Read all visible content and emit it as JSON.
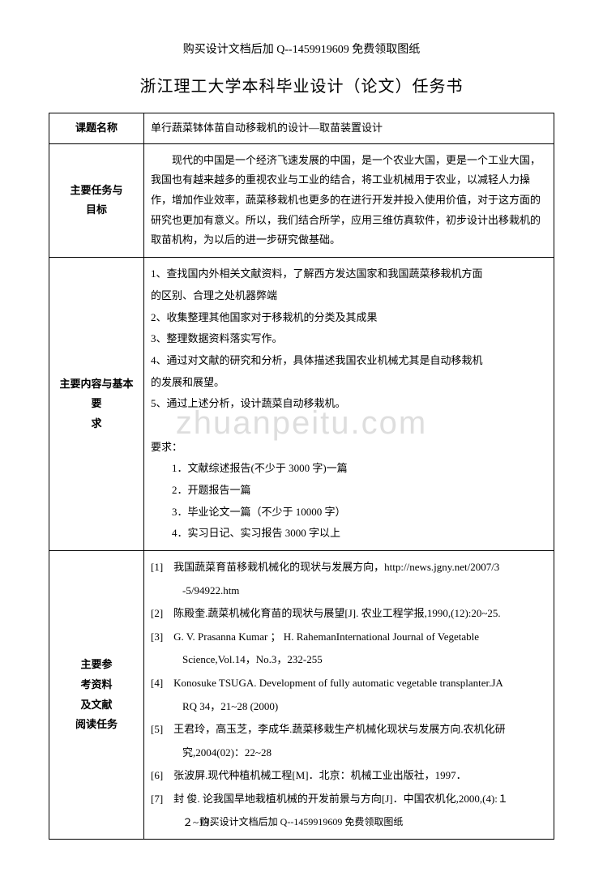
{
  "header": "购买设计文档后加 Q--1459919609 免费领取图纸",
  "title": "浙江理工大学本科毕业设计（论文）任务书",
  "watermark": "zhuanpeitu.com",
  "footer": "购买设计文档后加 Q--1459919609 免费领取图纸",
  "rows": {
    "topic_label": "课题名称",
    "topic_value": "单行蔬菜钵体苗自动移栽机的设计—取苗装置设计",
    "task_label_1": "主要任务与",
    "task_label_2": "目标",
    "task_content": "现代的中国是一个经济飞速发展的中国，是一个农业大国，更是一个工业大国，我国也有越来越多的重视农业与工业的结合，将工业机械用于农业，以减轻人力操作，增加作业效率，蔬菜移栽机也更多的在进行开发并投入使用价值，对于这方面的研究也更加有意义。所以，我们结合所学，应用三维仿真软件，初步设计出移栽机的取苗机构，为以后的进一步研究做基础。",
    "req_label_1": "主要内容与基本要",
    "req_label_2": "求",
    "req_1": "1、查找国内外相关文献资料，了解西方发达国家和我国蔬菜移栽机方面",
    "req_1b": "的区别、合理之处机器弊端",
    "req_2": "2、收集整理其他国家对于移栽机的分类及其成果",
    "req_3": "3、整理数据资料落实写作。",
    "req_4": "4、通过对文献的研究和分析，具体描述我国农业机械尤其是自动移栽机",
    "req_4b": "的发展和展望。",
    "req_5": "5、通过上述分析，设计蔬菜自动移栽机。",
    "req_head": "要求：",
    "req_d1": "1．文献综述报告(不少于 3000 字)一篇",
    "req_d2": "2．开题报告一篇",
    "req_d3": "3．毕业论文一篇（不少于 10000 字）",
    "req_d4": "4．实习日记、实习报告 3000 字以上",
    "ref_label_1": "主要参",
    "ref_label_2": "考资料",
    "ref_label_3": "及文献",
    "ref_label_4": "阅读任务",
    "ref_1": "[1]　我国蔬菜育苗移栽机械化的现状与发展方向，http://news.jgny.net/2007/3",
    "ref_1b": "-5/94922.htm",
    "ref_2": "[2]　陈殿奎.蔬菜机械化育苗的现状与展望[J]. 农业工程学报,1990,(12):20~25.",
    "ref_3": "[3]　G. V. Prasanna Kumar  ；  H. RahemanInternational Journal of Vegetable",
    "ref_3b": "Science,Vol.14，No.3，232-255",
    "ref_4": "[4]　Konosuke TSUGA.  Development  of  fully  automatic  vegetable  transplanter.JA",
    "ref_4b": "RQ  34，21~28  (2000)",
    "ref_5": "[5]　王君玲，高玉芝，李成华.蔬菜移栽生产机械化现状与发展方向.农机化研",
    "ref_5b": "究,2004(02)：22~28",
    "ref_6": "[6]　张波屏.现代种植机械工程[M]．北京：机械工业出版社，1997．",
    "ref_7": "[7]　封  俊. 论我国旱地栽植机械的开发前景与方向[J]．中国农机化,2000,(4):１",
    "ref_7b": "２~13．"
  }
}
